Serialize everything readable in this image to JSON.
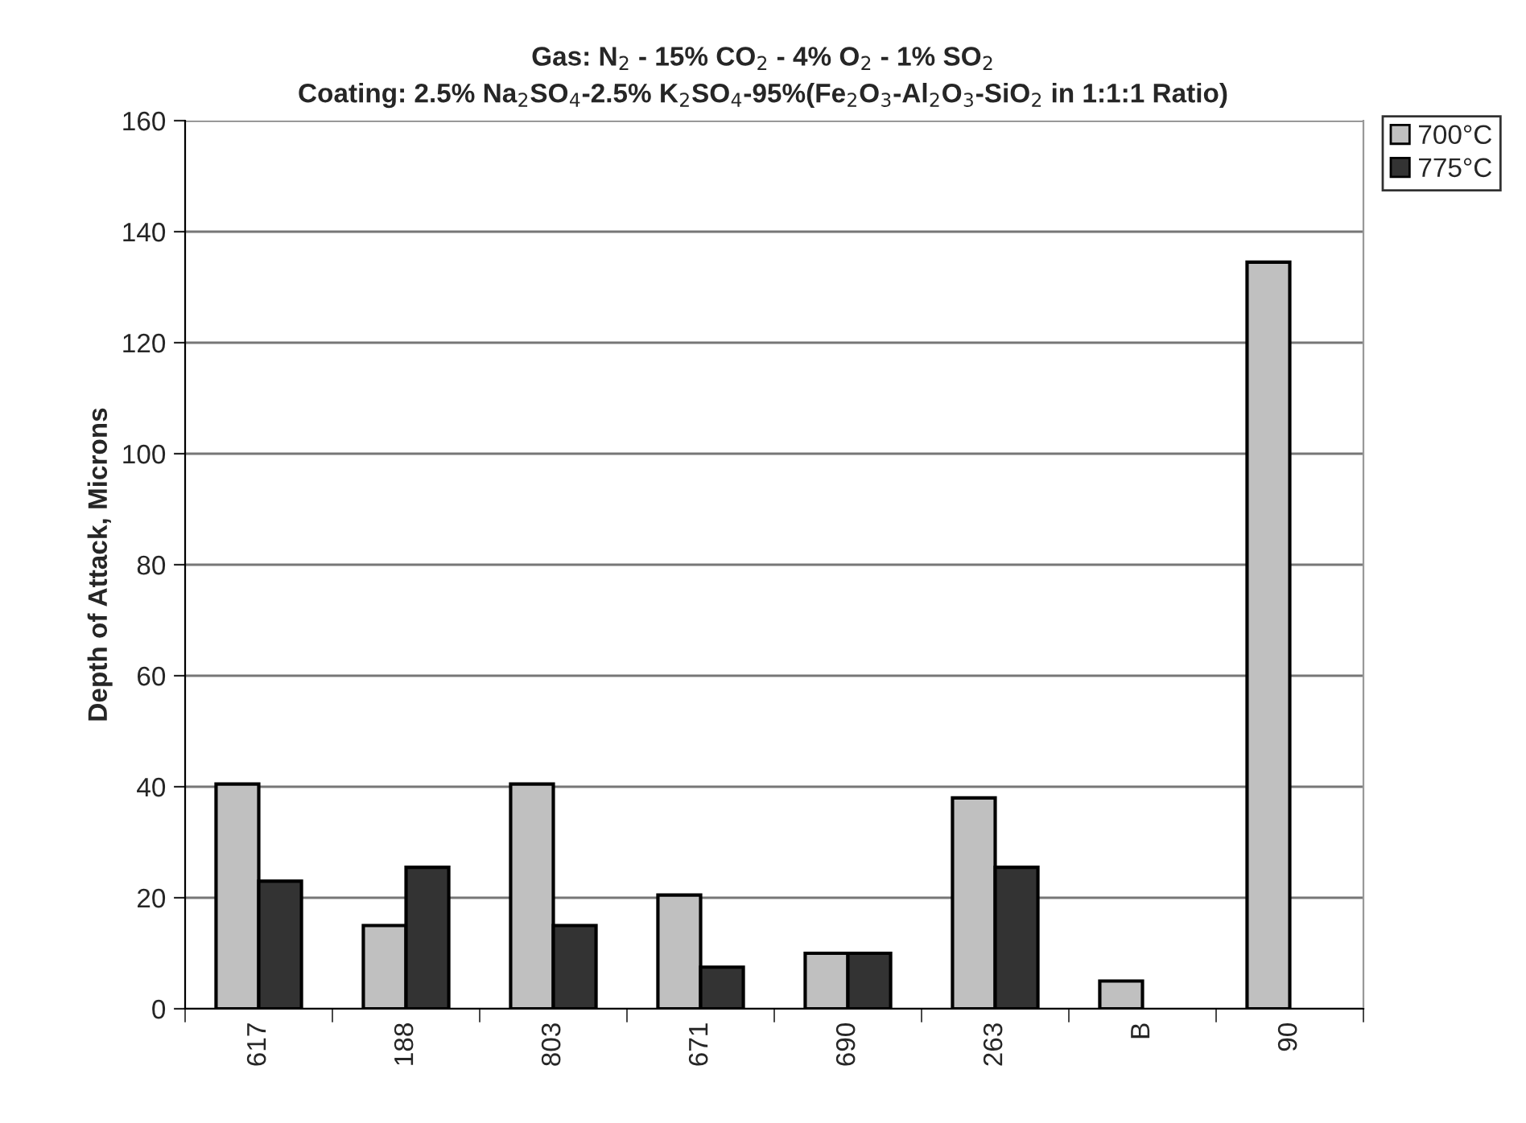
{
  "chart_data": {
    "type": "bar",
    "title": "Gas: N$_{2}$ - 15% CO$_{2}$ - 4% O$_{2}$ - 1% SO$_{2}$\nCoating: 2.5% Na$_{2}$SO$_{4}$-2.5% K$_{2}$SO$_{4}$-95%(Fe$_{2}$O$_{3}$-Al$_{2}$O$_{3}$-SiO$_{2}$ in 1:1:1 Ratio)",
    "ylabel": "Depth of Attack, Microns",
    "categories": [
      "617",
      "188",
      "803",
      "671",
      "690",
      "263",
      "B",
      "90"
    ],
    "series": [
      {
        "name": "700°C",
        "color": "#c0c0c0",
        "values": [
          40.5,
          15,
          40.5,
          20.5,
          10,
          38,
          5,
          134.5
        ]
      },
      {
        "name": "775°C",
        "color": "#333333",
        "values": [
          23,
          25.5,
          15,
          7.5,
          10,
          25.5,
          null,
          null
        ]
      }
    ],
    "ylim": [
      0,
      160
    ],
    "yticks": [
      0,
      20,
      40,
      60,
      80,
      100,
      120,
      140,
      160
    ],
    "grid": "y",
    "legend": "top right"
  }
}
